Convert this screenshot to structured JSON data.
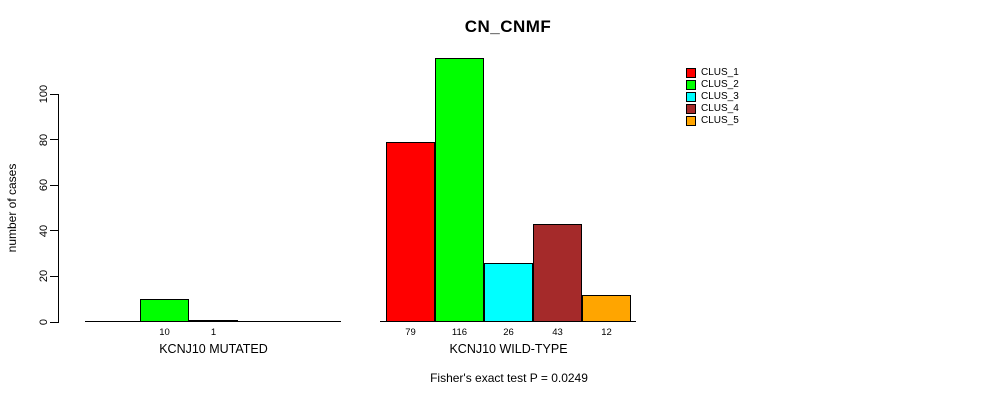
{
  "title": "CN_CNMF",
  "ylabel": "number of cases",
  "annotation": "Fisher's exact test P = 0.0249",
  "colors": {
    "CLUS_1": "#FF0000",
    "CLUS_2": "#00FF00",
    "CLUS_3": "#00FFFF",
    "CLUS_4": "#A52A2A",
    "CLUS_5": "#FFA500",
    "axis": "#000000",
    "background": "#FFFFFF"
  },
  "legend": {
    "position": "right",
    "items": [
      {
        "label": "CLUS_1",
        "color": "#FF0000"
      },
      {
        "label": "CLUS_2",
        "color": "#00FF00"
      },
      {
        "label": "CLUS_3",
        "color": "#00FFFF"
      },
      {
        "label": "CLUS_4",
        "color": "#A52A2A"
      },
      {
        "label": "CLUS_5",
        "color": "#FFA500"
      }
    ]
  },
  "chart_data": {
    "type": "bar",
    "title": "CN_CNMF",
    "xlabel": "",
    "ylabel": "number of cases",
    "ylim": [
      0,
      100
    ],
    "yticks": [
      0,
      20,
      40,
      60,
      80,
      100
    ],
    "grid": false,
    "legend_position": "right",
    "series_names": [
      "CLUS_1",
      "CLUS_2",
      "CLUS_3",
      "CLUS_4",
      "CLUS_5"
    ],
    "series_colors": [
      "#FF0000",
      "#00FF00",
      "#00FFFF",
      "#A52A2A",
      "#FFA500"
    ],
    "groups": [
      {
        "label": "KCNJ10 MUTATED",
        "values": [
          0,
          10,
          1,
          0,
          0
        ],
        "bar_labels": [
          "",
          "10",
          "1",
          "",
          ""
        ]
      },
      {
        "label": "KCNJ10 WILD-TYPE",
        "values": [
          79,
          116,
          26,
          43,
          12
        ],
        "bar_labels": [
          "79",
          "116",
          "26",
          "43",
          "12"
        ]
      }
    ],
    "annotation": "Fisher's exact test P = 0.0249"
  }
}
